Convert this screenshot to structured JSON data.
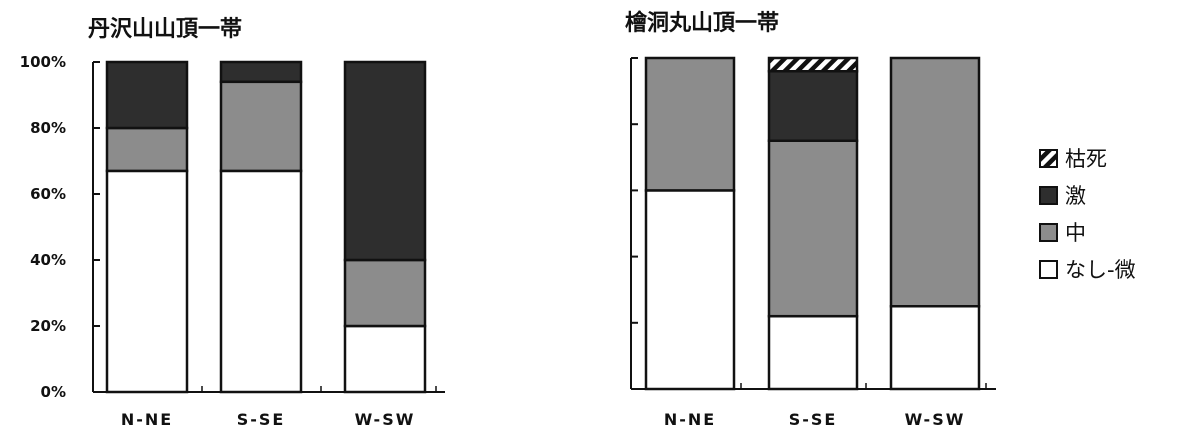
{
  "chart_data": [
    {
      "type": "bar",
      "stacked": true,
      "title": "丹沢山山頂一帯",
      "categories": [
        "N-NE",
        "S-SE",
        "W-SW"
      ],
      "ylim": [
        0,
        100
      ],
      "yticks": [
        "0%",
        "20%",
        "40%",
        "60%",
        "80%",
        "100%"
      ],
      "tick_labels_shown": true,
      "series": [
        {
          "name": "なし-微",
          "values": [
            67,
            67,
            20
          ]
        },
        {
          "name": "中",
          "values": [
            13,
            27,
            20
          ]
        },
        {
          "name": "激",
          "values": [
            20,
            6,
            60
          ]
        },
        {
          "name": "枯死",
          "values": [
            0,
            0,
            0
          ]
        }
      ]
    },
    {
      "type": "bar",
      "stacked": true,
      "title": "檜洞丸山頂一帯",
      "categories": [
        "N-NE",
        "S-SE",
        "W-SW"
      ],
      "ylim": [
        0,
        100
      ],
      "yticks": [
        "0%",
        "20%",
        "40%",
        "60%",
        "80%",
        "100%"
      ],
      "tick_labels_shown": false,
      "series": [
        {
          "name": "なし-微",
          "values": [
            60,
            22,
            25
          ]
        },
        {
          "name": "中",
          "values": [
            40,
            53,
            75
          ]
        },
        {
          "name": "激",
          "values": [
            0,
            21,
            0
          ]
        },
        {
          "name": "枯死",
          "values": [
            0,
            4,
            0
          ]
        }
      ]
    }
  ],
  "legend": {
    "placement": "right",
    "items": [
      {
        "label": "枯死",
        "key": "枯死"
      },
      {
        "label": "激",
        "key": "激"
      },
      {
        "label": "中",
        "key": "中"
      },
      {
        "label": "なし-微",
        "key": "なし-微"
      }
    ]
  },
  "colors": {
    "なし-微": "#ffffff",
    "中": "#8c8c8c",
    "激": "#2e2e2e",
    "枯死": "hatch"
  }
}
